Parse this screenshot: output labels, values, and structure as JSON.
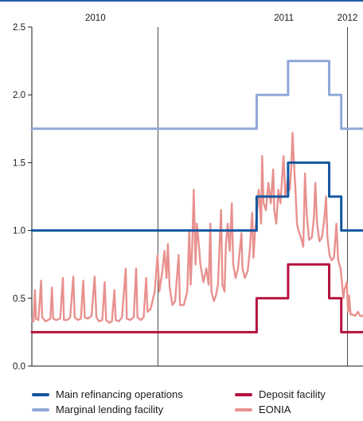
{
  "chart_data": {
    "type": "line",
    "title": "",
    "xlabel": "",
    "ylabel": "",
    "ylim": [
      0,
      2.5
    ],
    "yticks": [
      "0.0",
      "0.5",
      "1.0",
      "1.5",
      "2.0",
      "2.5"
    ],
    "ytick_values": [
      0,
      0.5,
      1.0,
      1.5,
      2.0,
      2.5
    ],
    "xlim": [
      "2009-07-01",
      "2012-02-15"
    ],
    "year_labels": [
      {
        "label": "2010",
        "date": "2010-01-01"
      },
      {
        "label": "2011",
        "date": "2011-07-01"
      },
      {
        "label": "2012",
        "date": "2012-01-01"
      }
    ],
    "year_dividers": [
      "2010-07-01",
      "2012-01-01"
    ],
    "grid": false,
    "legend_position": "bottom",
    "series": [
      {
        "name": "Marginal lending facility",
        "color": "#8fa8d8",
        "step": true,
        "points": [
          [
            "2009-07-01",
            1.75
          ],
          [
            "2011-04-13",
            2.0
          ],
          [
            "2011-07-13",
            2.25
          ],
          [
            "2011-11-09",
            2.0
          ],
          [
            "2011-12-14",
            1.75
          ],
          [
            "2012-02-15",
            1.75
          ]
        ]
      },
      {
        "name": "Main refinancing operations",
        "color": "#1456a0",
        "step": true,
        "points": [
          [
            "2009-07-01",
            1.0
          ],
          [
            "2011-04-13",
            1.25
          ],
          [
            "2011-07-13",
            1.5
          ],
          [
            "2011-11-09",
            1.25
          ],
          [
            "2011-12-14",
            1.0
          ],
          [
            "2012-02-15",
            1.0
          ]
        ]
      },
      {
        "name": "Deposit facility",
        "color": "#b5123f",
        "step": true,
        "points": [
          [
            "2009-07-01",
            0.25
          ],
          [
            "2011-04-13",
            0.5
          ],
          [
            "2011-07-13",
            0.75
          ],
          [
            "2011-11-09",
            0.5
          ],
          [
            "2011-12-14",
            0.25
          ],
          [
            "2012-02-15",
            0.25
          ]
        ]
      },
      {
        "name": "EONIA",
        "color": "#e8918f",
        "step": false,
        "points": [
          [
            "2009-07-01",
            0.34
          ],
          [
            "2009-07-06",
            0.33
          ],
          [
            "2009-07-10",
            0.56
          ],
          [
            "2009-07-13",
            0.35
          ],
          [
            "2009-07-20",
            0.34
          ],
          [
            "2009-07-28",
            0.63
          ],
          [
            "2009-07-31",
            0.36
          ],
          [
            "2009-08-10",
            0.33
          ],
          [
            "2009-08-17",
            0.34
          ],
          [
            "2009-08-24",
            0.35
          ],
          [
            "2009-08-28",
            0.58
          ],
          [
            "2009-09-01",
            0.35
          ],
          [
            "2009-09-10",
            0.34
          ],
          [
            "2009-09-21",
            0.35
          ],
          [
            "2009-09-29",
            0.65
          ],
          [
            "2009-10-02",
            0.34
          ],
          [
            "2009-10-12",
            0.34
          ],
          [
            "2009-10-20",
            0.36
          ],
          [
            "2009-10-29",
            0.66
          ],
          [
            "2009-11-02",
            0.36
          ],
          [
            "2009-11-12",
            0.34
          ],
          [
            "2009-11-20",
            0.35
          ],
          [
            "2009-11-27",
            0.63
          ],
          [
            "2009-12-01",
            0.36
          ],
          [
            "2009-12-10",
            0.35
          ],
          [
            "2009-12-21",
            0.37
          ],
          [
            "2009-12-30",
            0.66
          ],
          [
            "2010-01-04",
            0.36
          ],
          [
            "2010-01-12",
            0.33
          ],
          [
            "2010-01-21",
            0.34
          ],
          [
            "2010-01-28",
            0.62
          ],
          [
            "2010-02-01",
            0.34
          ],
          [
            "2010-02-10",
            0.32
          ],
          [
            "2010-02-18",
            0.33
          ],
          [
            "2010-02-25",
            0.56
          ],
          [
            "2010-03-01",
            0.34
          ],
          [
            "2010-03-10",
            0.33
          ],
          [
            "2010-03-19",
            0.36
          ],
          [
            "2010-03-30",
            0.72
          ],
          [
            "2010-04-02",
            0.35
          ],
          [
            "2010-04-12",
            0.34
          ],
          [
            "2010-04-22",
            0.36
          ],
          [
            "2010-04-29",
            0.72
          ],
          [
            "2010-05-03",
            0.36
          ],
          [
            "2010-05-12",
            0.34
          ],
          [
            "2010-05-21",
            0.36
          ],
          [
            "2010-05-28",
            0.65
          ],
          [
            "2010-06-01",
            0.4
          ],
          [
            "2010-06-10",
            0.42
          ],
          [
            "2010-06-22",
            0.55
          ],
          [
            "2010-06-30",
            0.82
          ],
          [
            "2010-07-05",
            0.55
          ],
          [
            "2010-07-14",
            0.7
          ],
          [
            "2010-07-20",
            0.85
          ],
          [
            "2010-07-26",
            0.65
          ],
          [
            "2010-07-30",
            0.9
          ],
          [
            "2010-08-04",
            0.58
          ],
          [
            "2010-08-12",
            0.45
          ],
          [
            "2010-08-20",
            0.48
          ],
          [
            "2010-08-30",
            0.82
          ],
          [
            "2010-09-03",
            0.45
          ],
          [
            "2010-09-14",
            0.45
          ],
          [
            "2010-09-24",
            0.55
          ],
          [
            "2010-09-30",
            1.0
          ],
          [
            "2010-10-04",
            0.6
          ],
          [
            "2010-10-08",
            0.85
          ],
          [
            "2010-10-13",
            1.3
          ],
          [
            "2010-10-18",
            0.75
          ],
          [
            "2010-10-22",
            1.05
          ],
          [
            "2010-10-28",
            0.88
          ],
          [
            "2010-11-01",
            0.75
          ],
          [
            "2010-11-10",
            0.62
          ],
          [
            "2010-11-18",
            0.72
          ],
          [
            "2010-11-25",
            0.6
          ],
          [
            "2010-11-30",
            1.05
          ],
          [
            "2010-12-03",
            0.55
          ],
          [
            "2010-12-10",
            0.48
          ],
          [
            "2010-12-16",
            0.52
          ],
          [
            "2010-12-22",
            0.6
          ],
          [
            "2010-12-31",
            1.15
          ],
          [
            "2011-01-04",
            0.6
          ],
          [
            "2011-01-10",
            0.55
          ],
          [
            "2011-01-14",
            0.9
          ],
          [
            "2011-01-19",
            1.05
          ],
          [
            "2011-01-25",
            0.85
          ],
          [
            "2011-01-31",
            1.2
          ],
          [
            "2011-02-04",
            0.75
          ],
          [
            "2011-02-11",
            0.65
          ],
          [
            "2011-02-18",
            0.72
          ],
          [
            "2011-02-28",
            0.98
          ],
          [
            "2011-03-03",
            0.72
          ],
          [
            "2011-03-10",
            0.65
          ],
          [
            "2011-03-18",
            0.7
          ],
          [
            "2011-03-24",
            0.85
          ],
          [
            "2011-03-31",
            1.13
          ],
          [
            "2011-04-04",
            0.8
          ],
          [
            "2011-04-08",
            0.98
          ],
          [
            "2011-04-13",
            1.1
          ],
          [
            "2011-04-19",
            1.3
          ],
          [
            "2011-04-26",
            1.05
          ],
          [
            "2011-04-29",
            1.55
          ],
          [
            "2011-05-03",
            1.2
          ],
          [
            "2011-05-10",
            1.15
          ],
          [
            "2011-05-17",
            1.35
          ],
          [
            "2011-05-24",
            1.2
          ],
          [
            "2011-05-31",
            1.45
          ],
          [
            "2011-06-03",
            1.15
          ],
          [
            "2011-06-09",
            1.05
          ],
          [
            "2011-06-15",
            1.3
          ],
          [
            "2011-06-21",
            1.2
          ],
          [
            "2011-06-30",
            1.55
          ],
          [
            "2011-07-05",
            1.25
          ],
          [
            "2011-07-12",
            1.38
          ],
          [
            "2011-07-18",
            1.3
          ],
          [
            "2011-07-22",
            1.45
          ],
          [
            "2011-07-26",
            1.72
          ],
          [
            "2011-07-29",
            1.55
          ],
          [
            "2011-08-03",
            1.32
          ],
          [
            "2011-08-08",
            1.05
          ],
          [
            "2011-08-12",
            1.0
          ],
          [
            "2011-08-19",
            0.95
          ],
          [
            "2011-08-26",
            0.88
          ],
          [
            "2011-08-31",
            1.42
          ],
          [
            "2011-09-05",
            1.12
          ],
          [
            "2011-09-12",
            0.93
          ],
          [
            "2011-09-20",
            0.95
          ],
          [
            "2011-09-26",
            1.1
          ],
          [
            "2011-09-30",
            1.35
          ],
          [
            "2011-10-05",
            1.05
          ],
          [
            "2011-10-12",
            0.92
          ],
          [
            "2011-10-19",
            0.95
          ],
          [
            "2011-10-26",
            1.08
          ],
          [
            "2011-10-31",
            1.25
          ],
          [
            "2011-11-04",
            0.95
          ],
          [
            "2011-11-10",
            0.82
          ],
          [
            "2011-11-16",
            0.78
          ],
          [
            "2011-11-23",
            0.8
          ],
          [
            "2011-11-30",
            1.05
          ],
          [
            "2011-12-05",
            0.78
          ],
          [
            "2011-12-12",
            0.72
          ],
          [
            "2011-12-16",
            0.62
          ],
          [
            "2011-12-20",
            0.5
          ],
          [
            "2011-12-23",
            0.56
          ],
          [
            "2011-12-30",
            0.62
          ],
          [
            "2012-01-03",
            0.4
          ],
          [
            "2012-01-06",
            0.52
          ],
          [
            "2012-01-10",
            0.38
          ],
          [
            "2012-01-16",
            0.38
          ],
          [
            "2012-01-23",
            0.37
          ],
          [
            "2012-01-31",
            0.4
          ],
          [
            "2012-02-07",
            0.37
          ],
          [
            "2012-02-15",
            0.37
          ]
        ]
      }
    ],
    "legend": [
      {
        "label": "Main refinancing operations",
        "color": "#1456a0"
      },
      {
        "label": "Deposit facility",
        "color": "#b5123f"
      },
      {
        "label": "Marginal lending facility",
        "color": "#8fa8d8"
      },
      {
        "label": "EONIA",
        "color": "#e8918f"
      }
    ]
  }
}
